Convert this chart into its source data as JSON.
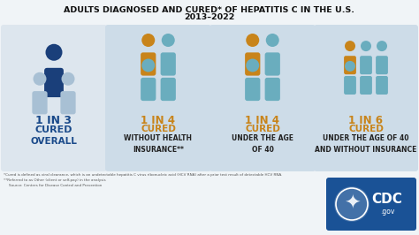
{
  "title_line1": "ADULTS DIAGNOSED AND CURED* OF HEPATITIS C IN THE U.S.",
  "title_line2": "2013–2022",
  "bg_color": "#f0f4f7",
  "panel0_bg": "#dde6ee",
  "panel_right_bg": "#cddce8",
  "blue_dark": "#1a3f7a",
  "blue_light": "#a8c0d4",
  "orange": "#c8841a",
  "teal": "#6aadbe",
  "footnote1": "*Cured is defined as viral clearance, which is an undetectable hepatitis C virus ribonucleic acid (HCV RNA) after a prior test result of detectable HCV RNA.",
  "footnote2": "**Referred to as Other (client or self-pay) in the analysis",
  "footnote3": "Source: Centers for Disease Control and Prevention",
  "panels": [
    {
      "ratio_big": "1 IN 3",
      "ratio_sub": "CURED",
      "label": "OVERALL",
      "ratio_color": "#1a4a8a"
    },
    {
      "ratio_big": "1 IN 4",
      "ratio_sub": "CURED",
      "label": "WITHOUT HEALTH\nINSURANCE**",
      "ratio_color": "#c8841a"
    },
    {
      "ratio_big": "1 IN 4",
      "ratio_sub": "CURED",
      "label": "UNDER THE AGE\nOF 40",
      "ratio_color": "#c8841a"
    },
    {
      "ratio_big": "1 IN 6",
      "ratio_sub": "CURED",
      "label": "UNDER THE AGE OF 40\nAND WITHOUT INSURANCE",
      "ratio_color": "#c8841a"
    }
  ],
  "cdc_blue": "#1a5296"
}
